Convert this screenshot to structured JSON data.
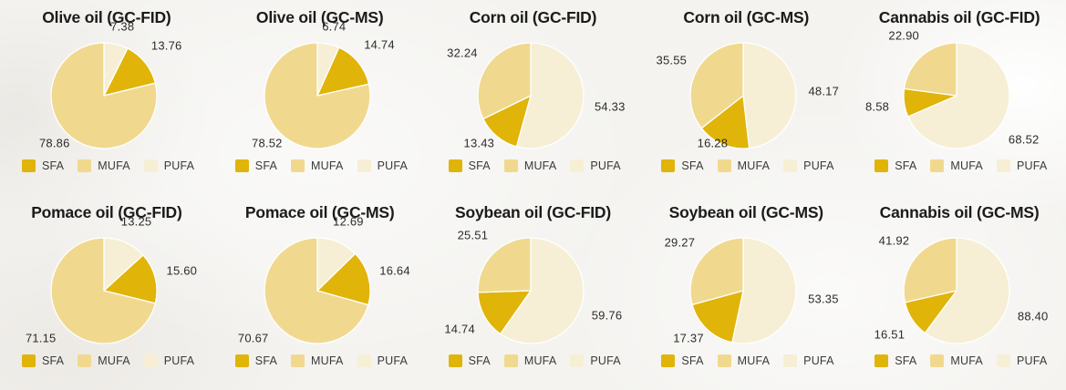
{
  "chart_style": {
    "palette": {
      "SFA": "#e0b409",
      "MUFA": "#f0d98f",
      "PUFA": "#f6efd5"
    },
    "slice_border_color": "#ffffff",
    "draw_order": [
      "PUFA",
      "SFA",
      "MUFA"
    ],
    "start_angle": "12-oclock",
    "direction": "clockwise",
    "normalize": "sum",
    "background": "#f4f3f0",
    "title_color": "#1b1b1b",
    "label_color": "#2c2c2c",
    "legend_text_color": "#3a3a3a",
    "grid_layout": {
      "rows": 2,
      "cols": 5
    }
  },
  "legend": {
    "items": [
      {
        "label": "SFA",
        "color": "#e0b409"
      },
      {
        "label": "MUFA",
        "color": "#f0d98f"
      },
      {
        "label": "PUFA",
        "color": "#f6efd5"
      }
    ]
  },
  "chart_data": [
    {
      "type": "pie",
      "title": "Olive oil (GC-FID)",
      "categories": [
        "SFA",
        "MUFA",
        "PUFA"
      ],
      "values": [
        13.76,
        78.86,
        7.38
      ],
      "value_labels": [
        "13.76",
        "78.86",
        "7.38"
      ],
      "legend_position": "bottom"
    },
    {
      "type": "pie",
      "title": "Olive oil (GC-MS)",
      "categories": [
        "SFA",
        "MUFA",
        "PUFA"
      ],
      "values": [
        14.74,
        78.52,
        6.74
      ],
      "value_labels": [
        "14.74",
        "78.52",
        "6.74"
      ],
      "legend_position": "bottom"
    },
    {
      "type": "pie",
      "title": "Corn oil (GC-FID)",
      "categories": [
        "SFA",
        "MUFA",
        "PUFA"
      ],
      "values": [
        13.43,
        32.24,
        54.33
      ],
      "value_labels": [
        "13.43",
        "32.24",
        "54.33"
      ],
      "legend_position": "bottom"
    },
    {
      "type": "pie",
      "title": "Corn oil (GC-MS)",
      "categories": [
        "SFA",
        "MUFA",
        "PUFA"
      ],
      "values": [
        16.28,
        35.55,
        48.17
      ],
      "value_labels": [
        "16.28",
        "35.55",
        "48.17"
      ],
      "legend_position": "bottom"
    },
    {
      "type": "pie",
      "title": "Cannabis oil (GC-FID)",
      "categories": [
        "SFA",
        "MUFA",
        "PUFA"
      ],
      "values": [
        8.58,
        22.9,
        68.52
      ],
      "value_labels": [
        "8.58",
        "22.90",
        "68.52"
      ],
      "legend_position": "bottom"
    },
    {
      "type": "pie",
      "title": "Pomace oil (GC-FID)",
      "categories": [
        "SFA",
        "MUFA",
        "PUFA"
      ],
      "values": [
        15.6,
        71.15,
        13.25
      ],
      "value_labels": [
        "15.60",
        "71.15",
        "13.25"
      ],
      "legend_position": "bottom"
    },
    {
      "type": "pie",
      "title": "Pomace oil (GC-MS)",
      "categories": [
        "SFA",
        "MUFA",
        "PUFA"
      ],
      "values": [
        16.64,
        70.67,
        12.69
      ],
      "value_labels": [
        "16.64",
        "70.67",
        "12.69"
      ],
      "legend_position": "bottom"
    },
    {
      "type": "pie",
      "title": "Soybean oil (GC-FID)",
      "categories": [
        "SFA",
        "MUFA",
        "PUFA"
      ],
      "values": [
        14.74,
        25.51,
        59.76
      ],
      "value_labels": [
        "14.74",
        "25.51",
        "59.76"
      ],
      "legend_position": "bottom"
    },
    {
      "type": "pie",
      "title": "Soybean oil (GC-MS)",
      "categories": [
        "SFA",
        "MUFA",
        "PUFA"
      ],
      "values": [
        17.37,
        29.27,
        53.35
      ],
      "value_labels": [
        "17.37",
        "29.27",
        "53.35"
      ],
      "legend_position": "bottom"
    },
    {
      "type": "pie",
      "title": "Cannabis oil (GC-MS)",
      "categories": [
        "SFA",
        "MUFA",
        "PUFA"
      ],
      "values": [
        16.51,
        41.92,
        88.4
      ],
      "value_labels": [
        "16.51",
        "41.92",
        "88.40"
      ],
      "legend_position": "bottom"
    }
  ]
}
